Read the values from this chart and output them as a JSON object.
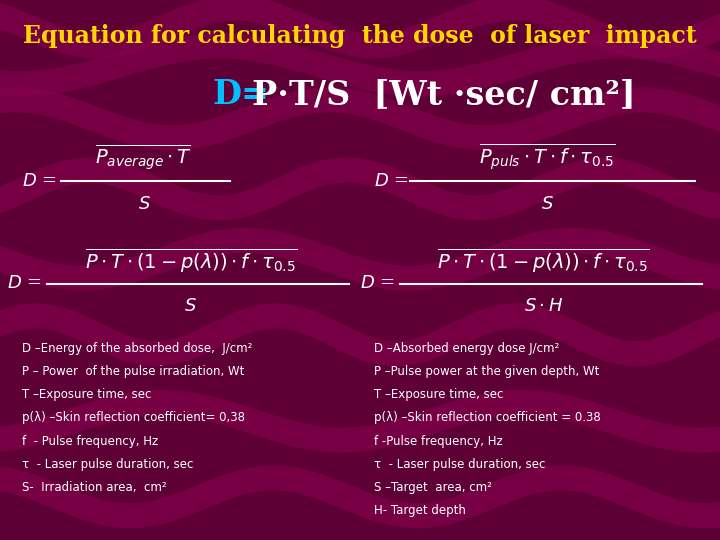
{
  "title": "Equation for calculating  the dose  of laser  impact",
  "title_color": "#FFD700",
  "title_fontsize": 17,
  "bg_color": "#5E0035",
  "formula_color": "#FFFFFF",
  "legend_color": "#FFFFFF",
  "legend_fontsize": 8.5,
  "legend_left": [
    "D –Energy of the absorbed dose,  J/cm²",
    "P – Power  of the pulse irradiation, Wt",
    "T –Exposure time, sec",
    "p(λ) –Skin reflection coefficient= 0,38",
    "f  - Pulse frequency, Hz",
    "τ  - Laser pulse duration, sec",
    "S-  Irradiation area,  cm²"
  ],
  "legend_right": [
    "D –Absorbed energy dose J/cm²",
    "P –Pulse power at the given depth, Wt",
    "T –Exposure time, sec",
    "p(λ) –Skin reflection coefficient = 0.38",
    "f -Pulse frequency, Hz",
    "τ  - Laser pulse duration, sec",
    "S –Target  area, cm²",
    "H- Target depth"
  ]
}
